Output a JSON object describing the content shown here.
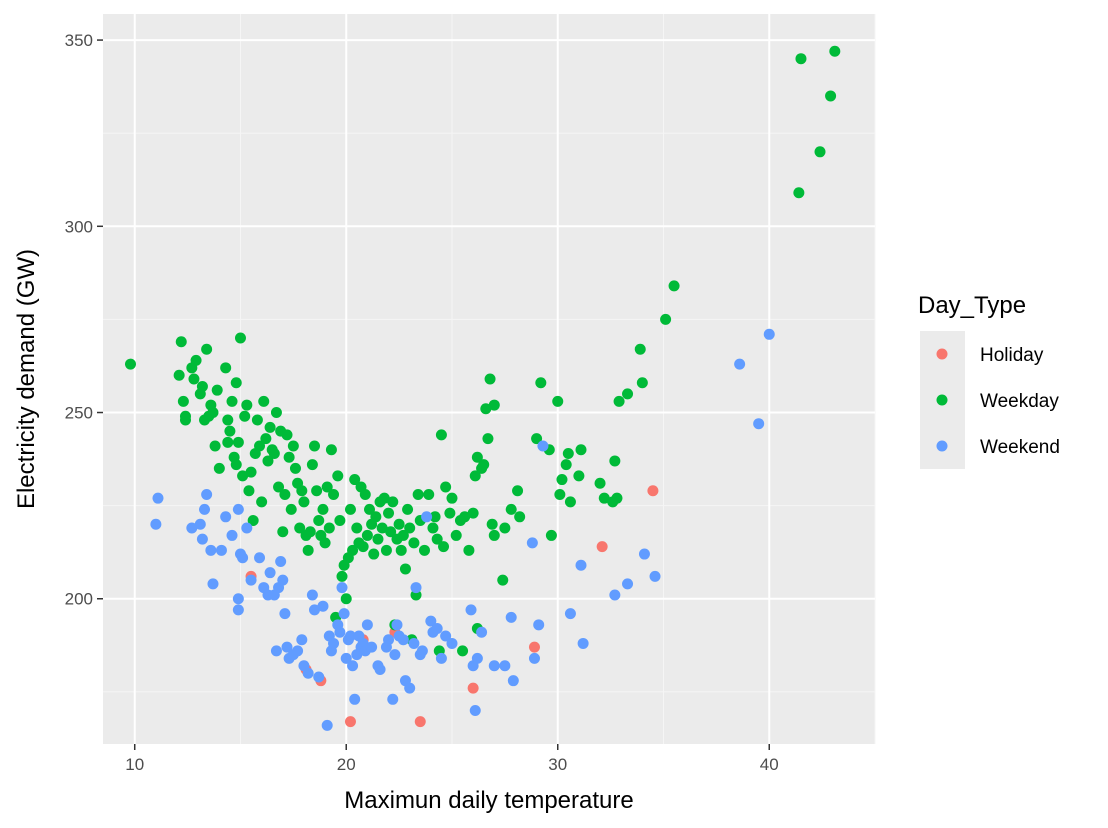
{
  "chart_data": {
    "type": "scatter",
    "title": "",
    "xlabel": "Maximun daily temperature",
    "ylabel": "Electricity demand (GW)",
    "xlim": [
      8.5,
      45
    ],
    "ylim": [
      161,
      357
    ],
    "x_ticks": [
      10,
      20,
      30,
      40
    ],
    "y_ticks": [
      200,
      250,
      300,
      350
    ],
    "grid": true,
    "legend": {
      "title": "Day_Type",
      "placement": "right",
      "entries": [
        {
          "label": "Holiday",
          "color": "#f8766d"
        },
        {
          "label": "Weekday",
          "color": "#00ba38"
        },
        {
          "label": "Weekend",
          "color": "#619cff"
        }
      ]
    },
    "series": [
      {
        "name": "Holiday",
        "color": "#f8766d",
        "points": [
          [
            15.5,
            206
          ],
          [
            18.1,
            181
          ],
          [
            18.8,
            178
          ],
          [
            20.2,
            167
          ],
          [
            23.5,
            167
          ],
          [
            20.8,
            189
          ],
          [
            26,
            176
          ],
          [
            28.9,
            187
          ],
          [
            32.1,
            214
          ],
          [
            34.5,
            229
          ],
          [
            22.3,
            191
          ]
        ]
      },
      {
        "name": "Weekday",
        "color": "#00ba38",
        "points": [
          [
            9.8,
            263
          ],
          [
            12.2,
            269
          ],
          [
            12.1,
            260
          ],
          [
            12.3,
            253
          ],
          [
            12.4,
            249
          ],
          [
            12.4,
            248
          ],
          [
            12.7,
            262
          ],
          [
            12.9,
            264
          ],
          [
            12.8,
            259
          ],
          [
            13.1,
            255
          ],
          [
            13.3,
            248
          ],
          [
            13.4,
            267
          ],
          [
            13.2,
            257
          ],
          [
            13.6,
            252
          ],
          [
            13.7,
            250
          ],
          [
            13.5,
            249
          ],
          [
            13.8,
            241
          ],
          [
            13.9,
            256
          ],
          [
            14.0,
            235
          ],
          [
            14.3,
            262
          ],
          [
            14.4,
            248
          ],
          [
            14.5,
            245
          ],
          [
            14.6,
            253
          ],
          [
            14.4,
            242
          ],
          [
            14.7,
            238
          ],
          [
            14.8,
            236
          ],
          [
            14.9,
            242
          ],
          [
            15.0,
            270
          ],
          [
            14.8,
            258
          ],
          [
            15.2,
            249
          ],
          [
            15.1,
            233
          ],
          [
            15.3,
            252
          ],
          [
            15.4,
            229
          ],
          [
            15.5,
            234
          ],
          [
            15.6,
            221
          ],
          [
            15.7,
            239
          ],
          [
            15.8,
            248
          ],
          [
            15.9,
            241
          ],
          [
            16.0,
            226
          ],
          [
            16.1,
            253
          ],
          [
            16.2,
            243
          ],
          [
            16.3,
            237
          ],
          [
            16.4,
            246
          ],
          [
            16.5,
            240
          ],
          [
            16.6,
            239
          ],
          [
            16.7,
            250
          ],
          [
            16.8,
            230
          ],
          [
            16.9,
            245
          ],
          [
            17.0,
            218
          ],
          [
            17.1,
            228
          ],
          [
            17.2,
            244
          ],
          [
            17.3,
            238
          ],
          [
            17.4,
            224
          ],
          [
            17.5,
            241
          ],
          [
            17.6,
            235
          ],
          [
            17.7,
            231
          ],
          [
            17.8,
            219
          ],
          [
            17.9,
            229
          ],
          [
            18.0,
            226
          ],
          [
            18.1,
            217
          ],
          [
            18.2,
            213
          ],
          [
            18.3,
            218
          ],
          [
            18.4,
            236
          ],
          [
            18.5,
            241
          ],
          [
            18.6,
            229
          ],
          [
            18.7,
            221
          ],
          [
            18.8,
            217
          ],
          [
            18.9,
            224
          ],
          [
            19.0,
            215
          ],
          [
            19.1,
            230
          ],
          [
            19.2,
            219
          ],
          [
            19.3,
            240
          ],
          [
            19.4,
            228
          ],
          [
            19.5,
            195
          ],
          [
            19.6,
            233
          ],
          [
            19.7,
            221
          ],
          [
            19.8,
            206
          ],
          [
            19.9,
            209
          ],
          [
            20.0,
            200
          ],
          [
            20.1,
            211
          ],
          [
            20.2,
            224
          ],
          [
            20.3,
            213
          ],
          [
            20.4,
            232
          ],
          [
            20.5,
            219
          ],
          [
            20.6,
            215
          ],
          [
            20.7,
            230
          ],
          [
            20.8,
            214
          ],
          [
            20.9,
            228
          ],
          [
            21.0,
            217
          ],
          [
            21.1,
            224
          ],
          [
            21.2,
            220
          ],
          [
            21.3,
            212
          ],
          [
            21.4,
            222
          ],
          [
            21.5,
            216
          ],
          [
            21.6,
            226
          ],
          [
            21.7,
            219
          ],
          [
            21.8,
            227
          ],
          [
            21.9,
            213
          ],
          [
            22.0,
            223
          ],
          [
            22.1,
            218
          ],
          [
            22.2,
            226
          ],
          [
            22.3,
            193
          ],
          [
            22.4,
            216
          ],
          [
            22.5,
            220
          ],
          [
            22.6,
            213
          ],
          [
            22.7,
            217
          ],
          [
            22.8,
            208
          ],
          [
            22.9,
            224
          ],
          [
            23.0,
            219
          ],
          [
            23.1,
            189
          ],
          [
            23.2,
            215
          ],
          [
            23.3,
            201
          ],
          [
            23.4,
            228
          ],
          [
            23.5,
            221
          ],
          [
            23.7,
            213
          ],
          [
            23.9,
            228
          ],
          [
            24.1,
            219
          ],
          [
            24.2,
            222
          ],
          [
            24.3,
            216
          ],
          [
            24.4,
            186
          ],
          [
            24.5,
            244
          ],
          [
            24.6,
            214
          ],
          [
            24.7,
            230
          ],
          [
            24.9,
            223
          ],
          [
            25.0,
            227
          ],
          [
            25.2,
            217
          ],
          [
            25.4,
            221
          ],
          [
            25.5,
            186
          ],
          [
            25.6,
            222
          ],
          [
            25.8,
            213
          ],
          [
            26.0,
            223
          ],
          [
            26.1,
            233
          ],
          [
            26.2,
            192
          ],
          [
            26.2,
            238
          ],
          [
            26.4,
            235
          ],
          [
            26.5,
            236
          ],
          [
            26.6,
            251
          ],
          [
            26.7,
            243
          ],
          [
            26.8,
            259
          ],
          [
            26.9,
            220
          ],
          [
            27.0,
            252
          ],
          [
            27.0,
            217
          ],
          [
            27.4,
            205
          ],
          [
            27.5,
            219
          ],
          [
            27.8,
            224
          ],
          [
            28.1,
            229
          ],
          [
            28.2,
            222
          ],
          [
            29.0,
            243
          ],
          [
            29.2,
            258
          ],
          [
            29.6,
            240
          ],
          [
            29.7,
            217
          ],
          [
            30.0,
            253
          ],
          [
            30.1,
            228
          ],
          [
            30.2,
            232
          ],
          [
            30.4,
            236
          ],
          [
            30.5,
            239
          ],
          [
            30.6,
            226
          ],
          [
            31.0,
            233
          ],
          [
            31.1,
            240
          ],
          [
            32.0,
            231
          ],
          [
            32.2,
            227
          ],
          [
            32.6,
            226
          ],
          [
            32.7,
            237
          ],
          [
            32.8,
            227
          ],
          [
            32.9,
            253
          ],
          [
            33.3,
            255
          ],
          [
            33.9,
            267
          ],
          [
            34.0,
            258
          ],
          [
            35.1,
            275
          ],
          [
            35.5,
            284
          ],
          [
            41.4,
            309
          ],
          [
            41.5,
            345
          ],
          [
            42.4,
            320
          ],
          [
            42.9,
            335
          ],
          [
            43.1,
            347
          ]
        ]
      },
      {
        "name": "Weekend",
        "color": "#619cff",
        "points": [
          [
            11.0,
            220
          ],
          [
            11.1,
            227
          ],
          [
            12.7,
            219
          ],
          [
            13.1,
            220
          ],
          [
            13.3,
            224
          ],
          [
            13.2,
            216
          ],
          [
            13.4,
            228
          ],
          [
            13.6,
            213
          ],
          [
            13.7,
            204
          ],
          [
            14.1,
            213
          ],
          [
            14.3,
            222
          ],
          [
            14.6,
            217
          ],
          [
            14.9,
            224
          ],
          [
            14.9,
            200
          ],
          [
            14.9,
            197
          ],
          [
            15.0,
            212
          ],
          [
            15.1,
            211
          ],
          [
            15.3,
            219
          ],
          [
            15.5,
            205
          ],
          [
            15.9,
            211
          ],
          [
            16.1,
            203
          ],
          [
            16.3,
            201
          ],
          [
            16.4,
            207
          ],
          [
            16.6,
            201
          ],
          [
            16.7,
            186
          ],
          [
            16.8,
            203
          ],
          [
            16.9,
            210
          ],
          [
            17.0,
            205
          ],
          [
            17.1,
            196
          ],
          [
            17.2,
            187
          ],
          [
            17.3,
            184
          ],
          [
            17.5,
            185
          ],
          [
            17.7,
            186
          ],
          [
            17.9,
            189
          ],
          [
            18.0,
            182
          ],
          [
            18.2,
            180
          ],
          [
            18.4,
            201
          ],
          [
            18.5,
            197
          ],
          [
            18.7,
            179
          ],
          [
            18.9,
            198
          ],
          [
            19.1,
            166
          ],
          [
            19.2,
            190
          ],
          [
            19.3,
            186
          ],
          [
            19.4,
            188
          ],
          [
            19.6,
            193
          ],
          [
            19.7,
            191
          ],
          [
            19.8,
            203
          ],
          [
            19.9,
            196
          ],
          [
            20.0,
            184
          ],
          [
            20.1,
            189
          ],
          [
            20.2,
            190
          ],
          [
            20.3,
            182
          ],
          [
            20.4,
            173
          ],
          [
            20.5,
            185
          ],
          [
            20.6,
            190
          ],
          [
            20.7,
            187
          ],
          [
            20.8,
            188
          ],
          [
            20.9,
            186
          ],
          [
            21.0,
            193
          ],
          [
            21.2,
            187
          ],
          [
            21.5,
            182
          ],
          [
            21.6,
            181
          ],
          [
            21.9,
            187
          ],
          [
            22.0,
            189
          ],
          [
            22.2,
            173
          ],
          [
            22.3,
            185
          ],
          [
            22.4,
            193
          ],
          [
            22.5,
            190
          ],
          [
            22.7,
            189
          ],
          [
            22.8,
            178
          ],
          [
            23.0,
            176
          ],
          [
            23.2,
            188
          ],
          [
            23.3,
            203
          ],
          [
            23.5,
            185
          ],
          [
            23.6,
            186
          ],
          [
            23.8,
            222
          ],
          [
            24.0,
            194
          ],
          [
            24.1,
            191
          ],
          [
            24.3,
            192
          ],
          [
            24.5,
            184
          ],
          [
            24.7,
            190
          ],
          [
            25.0,
            188
          ],
          [
            25.9,
            197
          ],
          [
            26.0,
            182
          ],
          [
            26.1,
            170
          ],
          [
            26.2,
            184
          ],
          [
            26.4,
            191
          ],
          [
            27.0,
            182
          ],
          [
            27.5,
            182
          ],
          [
            27.8,
            195
          ],
          [
            27.9,
            178
          ],
          [
            28.8,
            215
          ],
          [
            28.9,
            184
          ],
          [
            29.1,
            193
          ],
          [
            29.3,
            241
          ],
          [
            30.6,
            196
          ],
          [
            31.1,
            209
          ],
          [
            31.2,
            188
          ],
          [
            32.7,
            201
          ],
          [
            33.3,
            204
          ],
          [
            34.1,
            212
          ],
          [
            34.6,
            206
          ],
          [
            38.6,
            263
          ],
          [
            39.5,
            247
          ],
          [
            40.0,
            271
          ]
        ]
      }
    ]
  }
}
